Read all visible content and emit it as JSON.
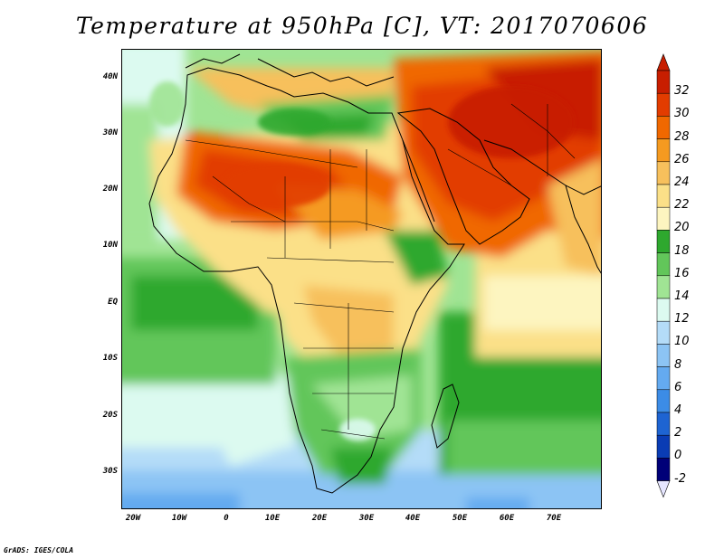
{
  "title": "Temperature at 950hPa [C], VT: 2017070606",
  "credit": "GrADS: IGES/COLA",
  "map": {
    "latitude_labels": [
      "40N",
      "30N",
      "20N",
      "10N",
      "EQ",
      "10S",
      "20S",
      "30S"
    ],
    "longitude_labels": [
      "20W",
      "10W",
      "0",
      "10E",
      "20E",
      "30E",
      "40E",
      "50E",
      "60E",
      "70E"
    ]
  },
  "colorbar": {
    "labels": [
      "32",
      "30",
      "28",
      "26",
      "24",
      "22",
      "20",
      "18",
      "16",
      "14",
      "12",
      "10",
      "8",
      "6",
      "4",
      "2",
      "0",
      "-2"
    ],
    "colors": [
      "#c81e00",
      "#e23c00",
      "#f06800",
      "#f59a20",
      "#f7c05c",
      "#fbe088",
      "#fdf5c0",
      "#2ea82e",
      "#62c65a",
      "#a0e494",
      "#dcfaf0",
      "#b4dcf8",
      "#8cc4f4",
      "#64aaf0",
      "#3c8ce6",
      "#1e64d2",
      "#0a3cb4",
      "#000078"
    ],
    "top_arrow_color": "#c81e00",
    "bottom_arrow_color": "#e6e6ff"
  }
}
